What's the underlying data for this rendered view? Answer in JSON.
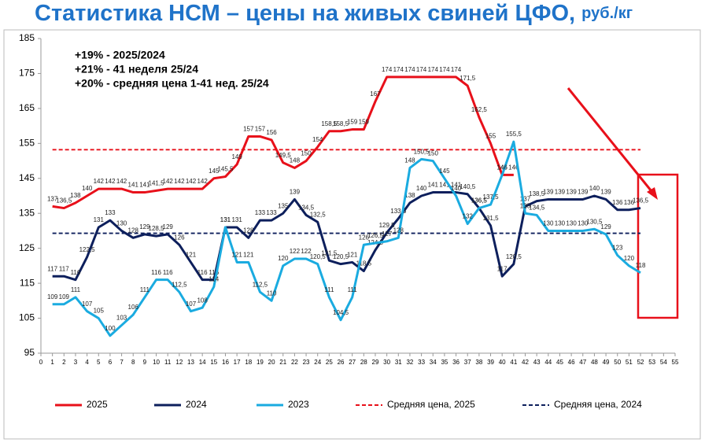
{
  "chart_data": {
    "type": "line",
    "title": "Статистика НСМ – цены на живых свиней ЦФО,",
    "title_unit": "руб./кг",
    "annotations": [
      "+19% - 2025/2024",
      "+21%  - 41 неделя 25/24",
      "+20% - средняя цена 1-41 нед. 25/24"
    ],
    "xlim": [
      0,
      55
    ],
    "xticks": [
      0,
      1,
      2,
      3,
      4,
      5,
      6,
      7,
      8,
      9,
      10,
      11,
      12,
      13,
      14,
      15,
      16,
      17,
      18,
      19,
      20,
      21,
      22,
      23,
      24,
      25,
      26,
      27,
      28,
      29,
      30,
      31,
      32,
      33,
      34,
      35,
      36,
      37,
      38,
      39,
      40,
      41,
      42,
      43,
      44,
      45,
      46,
      47,
      48,
      49,
      50,
      51,
      52,
      53,
      54,
      55
    ],
    "ylim": [
      95,
      185
    ],
    "yticks": [
      95,
      105,
      115,
      125,
      135,
      145,
      155,
      165,
      175,
      185
    ],
    "series": [
      {
        "name": "2025",
        "color": "#e8101a",
        "x": [
          1,
          2,
          3,
          4,
          5,
          6,
          7,
          8,
          9,
          10,
          11,
          12,
          13,
          14,
          15,
          16,
          17,
          18,
          19,
          20,
          21,
          22,
          23,
          24,
          25,
          26,
          27,
          28,
          29,
          30,
          31,
          32,
          33,
          34,
          35,
          36,
          37,
          38,
          39,
          40,
          41
        ],
        "values": [
          137,
          136.5,
          138,
          140,
          142,
          142,
          142,
          141,
          141,
          141.5,
          142,
          142,
          142,
          142,
          145,
          145.5,
          149,
          157,
          157,
          156,
          149.5,
          148,
          150,
          154,
          158.5,
          158.5,
          159,
          159,
          167,
          174,
          174,
          174,
          174,
          174,
          174,
          174,
          171.5,
          162.5,
          155,
          146,
          146
        ],
        "value_labels": [
          "137",
          "136,5",
          "138",
          "140",
          "142",
          "142",
          "142",
          "141",
          "141",
          "141,5",
          "142",
          "142",
          "142",
          "142",
          "145",
          "145,5",
          "149",
          "157",
          "157",
          "156",
          "149,5",
          "148",
          "150",
          "154",
          "158,5",
          "158,5",
          "159",
          "159",
          "167",
          "174",
          "174",
          "174",
          "174",
          "174",
          "174",
          "174",
          "171,5",
          "162,5",
          "155",
          "146",
          "146"
        ]
      },
      {
        "name": "2024",
        "color": "#0d1f5c",
        "x": [
          1,
          2,
          3,
          4,
          5,
          6,
          7,
          8,
          9,
          10,
          11,
          12,
          13,
          14,
          15,
          16,
          17,
          18,
          19,
          20,
          21,
          22,
          23,
          24,
          25,
          26,
          27,
          28,
          29,
          30,
          31,
          32,
          33,
          34,
          35,
          36,
          37,
          38,
          39,
          40,
          41,
          42,
          43,
          44,
          45,
          46,
          47,
          48,
          49,
          50,
          51,
          52
        ],
        "values": [
          117,
          117,
          116,
          122.5,
          131,
          133,
          130,
          128,
          129,
          128.5,
          129,
          126,
          121,
          116,
          116,
          131,
          131,
          128,
          133,
          133,
          135,
          139,
          134.5,
          132.5,
          121.5,
          120.5,
          121,
          118.5,
          124.5,
          129.5,
          133.5,
          138,
          140,
          141,
          141,
          141,
          140.5,
          136.5,
          131.5,
          117,
          120.5,
          137,
          138.5,
          139,
          139,
          139,
          139,
          140,
          139,
          136,
          136,
          136.5
        ],
        "value_labels": [
          "117",
          "117",
          "116",
          "122,5",
          "131",
          "133",
          "130",
          "128",
          "129",
          "128,5",
          "129",
          "126",
          "121",
          "116",
          "116",
          "131",
          "131",
          "128",
          "133",
          "133",
          "135",
          "139",
          "134,5",
          "132,5",
          "121,5",
          "120,5",
          "121",
          "118,5",
          "124,5",
          "129,5",
          "133,5",
          "138",
          "140",
          "141",
          "141",
          "141",
          "140,5",
          "136,5",
          "131,5",
          "117",
          "120,5",
          "137",
          "138,5",
          "139",
          "139",
          "139",
          "139",
          "140",
          "139",
          "136",
          "136",
          "136,5"
        ]
      },
      {
        "name": "2023",
        "color": "#1aabe0",
        "x": [
          1,
          2,
          3,
          4,
          5,
          6,
          7,
          8,
          9,
          10,
          11,
          12,
          13,
          14,
          15,
          16,
          17,
          18,
          19,
          20,
          21,
          22,
          23,
          24,
          25,
          26,
          27,
          28,
          29,
          30,
          31,
          32,
          33,
          34,
          35,
          36,
          37,
          38,
          39,
          40,
          41,
          42,
          43,
          44,
          45,
          46,
          47,
          48,
          49,
          50,
          51,
          52
        ],
        "values": [
          109,
          109,
          111,
          107,
          105,
          100,
          103,
          106,
          111,
          116,
          116,
          112.5,
          107,
          108,
          114,
          131,
          121,
          121,
          112.5,
          110,
          120,
          122,
          122,
          120.5,
          111,
          104.5,
          111,
          126,
          126.5,
          127,
          128,
          148,
          150.5,
          150,
          145,
          140,
          132,
          136.5,
          137.5,
          146,
          155.5,
          135,
          134.5,
          130,
          130,
          130,
          130,
          130.5,
          129,
          123,
          120,
          118
        ],
        "value_labels": [
          "109",
          "109",
          "111",
          "107",
          "105",
          "100",
          "103",
          "106",
          "111",
          "116",
          "116",
          "112,5",
          "107",
          "108",
          "114",
          "131",
          "121",
          "121",
          "112,5",
          "110",
          "120",
          "122",
          "122",
          "120,5",
          "111",
          "104,5",
          "111",
          "126",
          "126,5",
          "127",
          "128",
          "148",
          "150,5",
          "150",
          "145",
          "140",
          "132",
          "136,5",
          "137,5",
          "146",
          "155,5",
          "135",
          "134,5",
          "130",
          "130",
          "130",
          "130",
          "130,5",
          "129",
          "123",
          "120",
          "118"
        ]
      }
    ],
    "reference_lines": [
      {
        "name": "Средняя цена, 2025",
        "value": 153.2,
        "color": "#e8101a"
      },
      {
        "name": "Средняя цена, 2024",
        "value": 129.3,
        "color": "#0d1f5c"
      }
    ]
  }
}
